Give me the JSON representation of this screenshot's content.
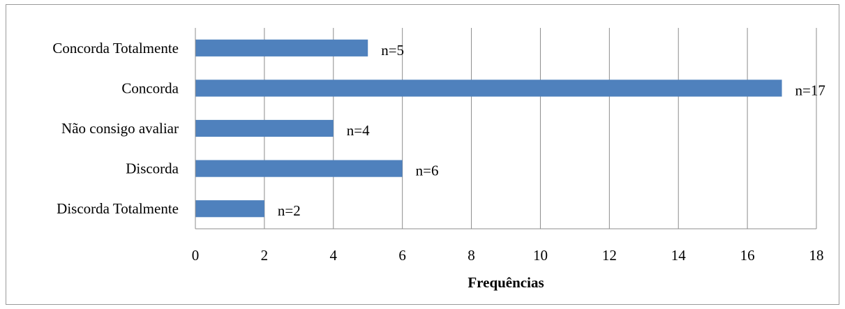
{
  "chart_data": {
    "type": "bar",
    "orientation": "horizontal",
    "categories": [
      "Concorda Totalmente",
      "Concorda",
      "Não consigo avaliar",
      "Discorda",
      "Discorda Totalmente"
    ],
    "values": [
      5,
      17,
      4,
      6,
      2
    ],
    "data_labels": [
      "n=5",
      "n=17",
      "n=4",
      "n=6",
      "n=2"
    ],
    "xlabel": "Frequências",
    "xlim": [
      0,
      18
    ],
    "x_ticks": [
      "0",
      "2",
      "4",
      "6",
      "8",
      "10",
      "12",
      "14",
      "16",
      "18"
    ],
    "grid": "vertical",
    "bar_color": "#4f81bd"
  }
}
